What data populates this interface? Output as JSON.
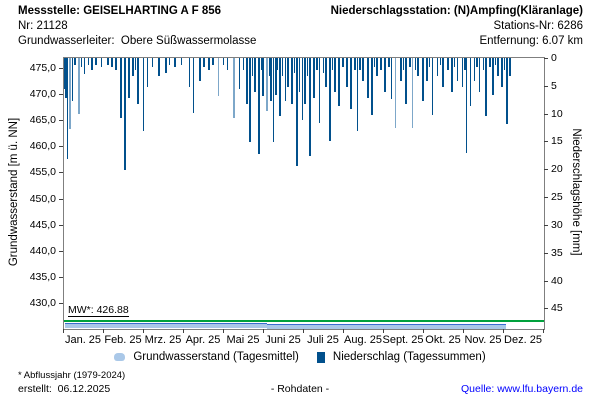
{
  "header": {
    "messstelle": "Messstelle: GEISELHARTING A F 856",
    "nr": "Nr: 21128",
    "grundwasserleiter": "Grundwasserleiter:  Obere Süßwassermolasse",
    "station": "Niederschlagsstation: (N)Ampfing(Kläranlage)",
    "stations_nr": "Stations-Nr: 6286",
    "entfernung": "Entfernung: 6.07 km"
  },
  "legend": {
    "groundwater": "Grundwasserstand (Tagesmittel)",
    "precipitation": "Niederschlag (Tagessummen)"
  },
  "footer": {
    "note": "* Abflussjahr (1979-2024)",
    "created": "erstellt:  06.12.2025",
    "center": "- Rohdaten -",
    "source": "Quelle: www.lfu.bayern.de"
  },
  "colors": {
    "bar": "#01508c",
    "bar_light": "#7da7c9",
    "gw_fill": "#aac8e8",
    "gw_edge": "#3a6ed0",
    "mw_line": "#00a13c",
    "link": "#0000ff",
    "frame": "#7f7f7f"
  },
  "chart_data": {
    "type": "bar",
    "title": "",
    "x_months": [
      "Jan. 25",
      "Feb. 25",
      "Mrz. 25",
      "Apr. 25",
      "Mai 25",
      "Juni 25",
      "Juli 25",
      "Aug. 25",
      "Sept. 25",
      "Okt. 25",
      "Nov. 25",
      "Dez. 25"
    ],
    "y_left": {
      "label": "Grundwasserstand [m ü. NN]",
      "tick_values": [
        475,
        470,
        465,
        460,
        455,
        450,
        445,
        440,
        435,
        430
      ],
      "tick_labels": [
        "475,0",
        "470,0",
        "465,0",
        "460,0",
        "455,0",
        "450,0",
        "445,0",
        "440,0",
        "435,0",
        "430,0"
      ]
    },
    "y_right": {
      "label": "Niederschlagshöhe [mm]",
      "tick_values": [
        0,
        5,
        10,
        15,
        20,
        25,
        30,
        35,
        40,
        45
      ],
      "inverted_axis": true
    },
    "mw": {
      "label": "MW*: 426.88",
      "value": 426.88
    },
    "groundwater": {
      "name": "Grundwasserstand (Tagesmittel)",
      "unit": "m ü. NN",
      "segments": [
        {
          "from_day": 1,
          "to_day": 155,
          "value": 426.05
        },
        {
          "from_day": 155,
          "to_day": 310,
          "value": 425.85
        },
        {
          "from_day": 310,
          "to_day": 337,
          "value": 425.7
        }
      ]
    },
    "precipitation": {
      "name": "Niederschlag (Tagessummen)",
      "unit": "mm",
      "points": [
        [
          1,
          5.4
        ],
        [
          2,
          7
        ],
        [
          3,
          18
        ],
        [
          5,
          12.6,
          1
        ],
        [
          7,
          7.6
        ],
        [
          9,
          1
        ],
        [
          12,
          9.9,
          1
        ],
        [
          14,
          1.5
        ],
        [
          16,
          2.7
        ],
        [
          19,
          1
        ],
        [
          22,
          2
        ],
        [
          25,
          1
        ],
        [
          29,
          1.5
        ],
        [
          34,
          1
        ],
        [
          37,
          1.5
        ],
        [
          40,
          2
        ],
        [
          44,
          10.6
        ],
        [
          47,
          20
        ],
        [
          50,
          7
        ],
        [
          53,
          3
        ],
        [
          55,
          2
        ],
        [
          57,
          8
        ],
        [
          61,
          13
        ],
        [
          64,
          5
        ],
        [
          68,
          1.5
        ],
        [
          73,
          3
        ],
        [
          78,
          2.5
        ],
        [
          81,
          1
        ],
        [
          85,
          1.5
        ],
        [
          90,
          1
        ],
        [
          96,
          5
        ],
        [
          99,
          9.7
        ],
        [
          104,
          4
        ],
        [
          107,
          1.5
        ],
        [
          111,
          2
        ],
        [
          114,
          1
        ],
        [
          118,
          6.7,
          1
        ],
        [
          122,
          1
        ],
        [
          125,
          2
        ],
        [
          130,
          10.6,
          1
        ],
        [
          134,
          5.4
        ],
        [
          137,
          2
        ],
        [
          140,
          8
        ],
        [
          142,
          15
        ],
        [
          144,
          3
        ],
        [
          146,
          6
        ],
        [
          149,
          17
        ],
        [
          151,
          2
        ],
        [
          152,
          6.7
        ],
        [
          155,
          9.4,
          1
        ],
        [
          157,
          3
        ],
        [
          158,
          7.6
        ],
        [
          160,
          15
        ],
        [
          162,
          6.5
        ],
        [
          163,
          2
        ],
        [
          165,
          10.3
        ],
        [
          167,
          3
        ],
        [
          169,
          7.6
        ],
        [
          171,
          5
        ],
        [
          174,
          8
        ],
        [
          176,
          2.5
        ],
        [
          178,
          19.2
        ],
        [
          180,
          6
        ],
        [
          182,
          11
        ],
        [
          184,
          8
        ],
        [
          186,
          3
        ],
        [
          188,
          17.4
        ],
        [
          191,
          7
        ],
        [
          193,
          2
        ],
        [
          195,
          11.5
        ],
        [
          198,
          2.5
        ],
        [
          200,
          5
        ],
        [
          203,
          14.7
        ],
        [
          205,
          2
        ],
        [
          207,
          6
        ],
        [
          210,
          8.5
        ],
        [
          213,
          1.5
        ],
        [
          216,
          5
        ],
        [
          219,
          9
        ],
        [
          222,
          2
        ],
        [
          224,
          13
        ],
        [
          226,
          2
        ],
        [
          228,
          4
        ],
        [
          232,
          7
        ],
        [
          235,
          10
        ],
        [
          237,
          1.5
        ],
        [
          239,
          3
        ],
        [
          242,
          2
        ],
        [
          245,
          6
        ],
        [
          248,
          1.5
        ],
        [
          250,
          7.2
        ],
        [
          253,
          12.4,
          1
        ],
        [
          257,
          4
        ],
        [
          259,
          2
        ],
        [
          261,
          8
        ],
        [
          264,
          1.5
        ],
        [
          266,
          12.4,
          1
        ],
        [
          268,
          2
        ],
        [
          270,
          3
        ],
        [
          274,
          7.6
        ],
        [
          277,
          4
        ],
        [
          279,
          1.5
        ],
        [
          281,
          10
        ],
        [
          285,
          3
        ],
        [
          287,
          1
        ],
        [
          289,
          5
        ],
        [
          293,
          2
        ],
        [
          296,
          6
        ],
        [
          298,
          1.5
        ],
        [
          300,
          4
        ],
        [
          304,
          5
        ],
        [
          306,
          2
        ],
        [
          307,
          16.9
        ],
        [
          310,
          8.5
        ],
        [
          313,
          4
        ],
        [
          315,
          1.5
        ],
        [
          317,
          6
        ],
        [
          320,
          2
        ],
        [
          322,
          10.3
        ],
        [
          325,
          1.5
        ],
        [
          327,
          6.5
        ],
        [
          329,
          1
        ],
        [
          331,
          3
        ],
        [
          334,
          5
        ],
        [
          336,
          2
        ],
        [
          338,
          11.7
        ],
        [
          340,
          3
        ]
      ]
    }
  }
}
